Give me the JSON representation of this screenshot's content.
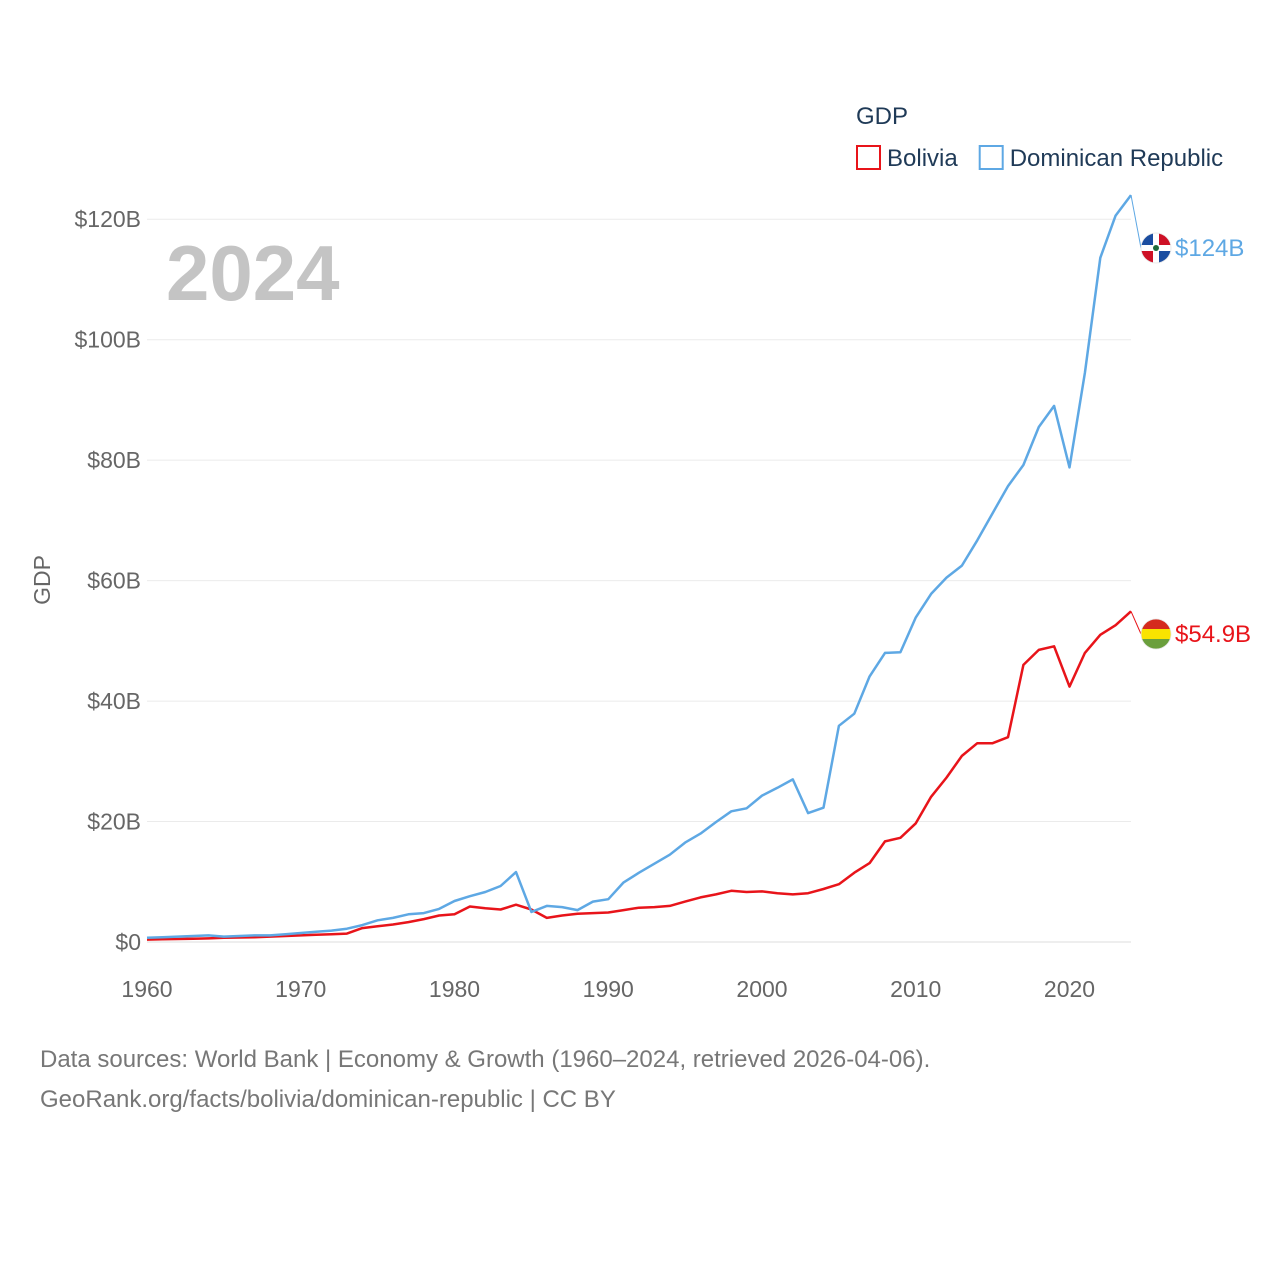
{
  "chart_data": {
    "type": "line",
    "title": "",
    "xlabel": "",
    "ylabel": "GDP",
    "year_label": "2024",
    "xlim": [
      1960,
      2024
    ],
    "ylim": [
      0,
      130
    ],
    "x_ticks": [
      1960,
      1970,
      1980,
      1990,
      2000,
      2010,
      2020
    ],
    "y_ticks": [
      {
        "value": 0,
        "label": "$0"
      },
      {
        "value": 20,
        "label": "$20B"
      },
      {
        "value": 40,
        "label": "$40B"
      },
      {
        "value": 60,
        "label": "$60B"
      },
      {
        "value": 80,
        "label": "$80B"
      },
      {
        "value": 100,
        "label": "$100B"
      },
      {
        "value": 120,
        "label": "$120B"
      }
    ],
    "legend": {
      "title": "GDP",
      "position": "top-right"
    },
    "x": [
      1960,
      1961,
      1962,
      1963,
      1964,
      1965,
      1966,
      1967,
      1968,
      1969,
      1970,
      1971,
      1972,
      1973,
      1974,
      1975,
      1976,
      1977,
      1978,
      1979,
      1980,
      1981,
      1982,
      1983,
      1984,
      1985,
      1986,
      1987,
      1988,
      1989,
      1990,
      1991,
      1992,
      1993,
      1994,
      1995,
      1996,
      1997,
      1998,
      1999,
      2000,
      2001,
      2002,
      2003,
      2004,
      2005,
      2006,
      2007,
      2008,
      2009,
      2010,
      2011,
      2012,
      2013,
      2014,
      2015,
      2016,
      2017,
      2018,
      2019,
      2020,
      2021,
      2022,
      2023,
      2024
    ],
    "series": [
      {
        "name": "Bolivia",
        "color": "#e8141a",
        "end_label": "$54.9B",
        "flag": "bolivia-flag",
        "values": [
          0.4,
          0.45,
          0.5,
          0.55,
          0.6,
          0.7,
          0.75,
          0.8,
          0.9,
          1.0,
          1.1,
          1.2,
          1.3,
          1.4,
          2.3,
          2.6,
          2.9,
          3.3,
          3.8,
          4.4,
          4.6,
          5.9,
          5.6,
          5.4,
          6.2,
          5.4,
          4.0,
          4.4,
          4.7,
          4.8,
          4.9,
          5.3,
          5.7,
          5.8,
          6.0,
          6.7,
          7.4,
          7.9,
          8.5,
          8.3,
          8.4,
          8.1,
          7.9,
          8.1,
          8.8,
          9.6,
          11.5,
          13.1,
          16.7,
          17.3,
          19.7,
          24.1,
          27.3,
          30.9,
          33.0,
          33.0,
          34.0,
          46.0,
          48.5,
          49.1,
          42.4,
          48.0,
          51.0,
          52.6,
          54.9
        ]
      },
      {
        "name": "Dominican Republic",
        "color": "#5ea8e4",
        "end_label": "$124B",
        "flag": "dominican-republic-flag",
        "values": [
          0.7,
          0.8,
          0.9,
          1.0,
          1.1,
          0.9,
          1.0,
          1.1,
          1.1,
          1.3,
          1.5,
          1.7,
          1.9,
          2.2,
          2.8,
          3.6,
          4.0,
          4.6,
          4.8,
          5.5,
          6.8,
          7.6,
          8.3,
          9.3,
          11.6,
          5.0,
          6.0,
          5.8,
          5.3,
          6.7,
          7.1,
          9.9,
          11.5,
          13.0,
          14.5,
          16.5,
          18.0,
          19.9,
          21.7,
          22.2,
          24.3,
          25.6,
          27.0,
          21.4,
          22.3,
          35.9,
          37.9,
          44.1,
          48.0,
          48.1,
          53.9,
          57.8,
          60.5,
          62.5,
          66.7,
          71.2,
          75.7,
          79.2,
          85.5,
          89.0,
          78.8,
          94.5,
          113.6,
          120.6,
          124.0
        ]
      }
    ]
  },
  "footer": {
    "line1": "Data sources: World Bank | Economy & Growth (1960–2024, retrieved 2026-04-06).",
    "line2": "GeoRank.org/facts/bolivia/dominican-republic | CC BY"
  }
}
